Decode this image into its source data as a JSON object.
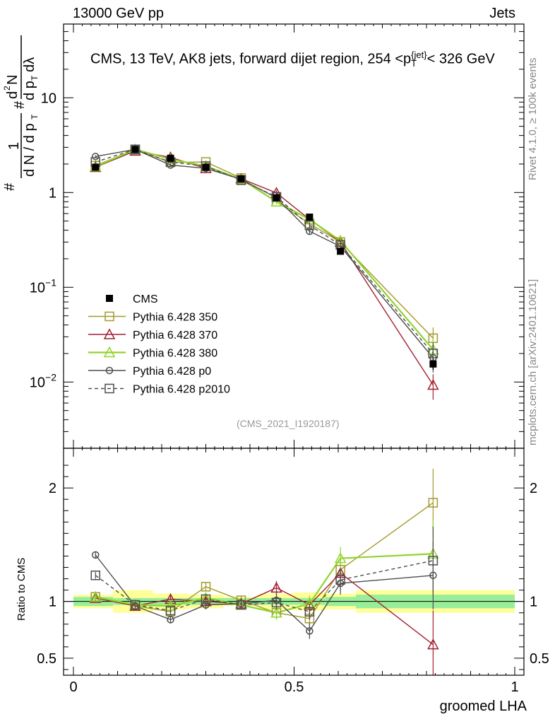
{
  "header": {
    "left": "13000 GeV pp",
    "right": "Jets"
  },
  "side_labels": {
    "rivet": "Rivet 4.1.0, ≥ 100k events",
    "mcplots": "mcplots.cern.ch [arXiv:2401.10621]"
  },
  "chart_data": {
    "type": "line",
    "title": "CMS, 13 TeV, AK8 jets, forward dijet region, 254 <p_T^{jet}< 326 GeV",
    "title_parts": {
      "prefix": "CMS, 13 TeV, AK8 jets, forward dijet region, 254 <p",
      "sup": "{jet}",
      "sub": "T",
      "suffix": "< 326 GeV"
    },
    "analysis_id": "(CMS_2021_I1920187)",
    "xlabel": "groomed LHA",
    "ylabel_main": "1/(dN/dp_T) d²N/(dp_T dλ)",
    "ylabel_ratio": "Ratio to CMS",
    "xlim": [
      0,
      1
    ],
    "ylim_main": [
      0.002,
      60
    ],
    "yscale_main": "log",
    "ylim_ratio": [
      0.35,
      2.35
    ],
    "x_ticks": [
      "0",
      "0.5",
      "1"
    ],
    "y_ticks_main": [
      {
        "value": 0.01,
        "base": "10",
        "exp": "−2"
      },
      {
        "value": 0.1,
        "base": "10",
        "exp": "−1"
      },
      {
        "value": 1,
        "base": "1",
        "exp": ""
      },
      {
        "value": 10,
        "base": "10",
        "exp": ""
      }
    ],
    "y_ticks_ratio": [
      "0.5",
      "1",
      "2"
    ],
    "bin_edges": [
      0.0,
      0.09,
      0.18,
      0.26,
      0.34,
      0.42,
      0.5,
      0.57,
      0.64,
      1.0
    ],
    "x": [
      0.05,
      0.14,
      0.22,
      0.3,
      0.38,
      0.46,
      0.535,
      0.605,
      0.815
    ],
    "data": {
      "name": "CMS",
      "values": [
        1.85,
        2.85,
        2.3,
        1.85,
        1.4,
        0.88,
        0.55,
        0.24,
        0.0155
      ],
      "errors": [
        0.08,
        0.1,
        0.08,
        0.07,
        0.05,
        0.04,
        0.03,
        0.015,
        0.002
      ],
      "band_inner": [
        0.04,
        0.03,
        0.03,
        0.03,
        0.03,
        0.03,
        0.03,
        0.04,
        0.06
      ],
      "band_outer": [
        0.06,
        0.1,
        0.07,
        0.06,
        0.04,
        0.07,
        0.08,
        0.07,
        0.1
      ]
    },
    "series": [
      {
        "name": "Pythia 6.428 350",
        "color": "#a39a2b",
        "marker": "square-open",
        "dashed": false,
        "values": [
          1.92,
          2.85,
          2.08,
          2.1,
          1.42,
          0.8,
          0.47,
          0.3,
          0.029
        ],
        "ratio": [
          1.04,
          0.96,
          0.91,
          1.13,
          1.01,
          0.9,
          0.85,
          1.28,
          1.87
        ],
        "ratio_err": [
          0.03,
          0.03,
          0.03,
          0.04,
          0.04,
          0.06,
          0.07,
          0.1,
          0.3
        ]
      },
      {
        "name": "Pythia 6.428 370",
        "color": "#a21f32",
        "marker": "triangle-open",
        "dashed": false,
        "values": [
          1.85,
          2.75,
          2.35,
          1.8,
          1.4,
          0.99,
          0.52,
          0.3,
          0.0093
        ],
        "ratio": [
          1.03,
          0.96,
          1.02,
          1.0,
          0.98,
          1.12,
          0.97,
          1.25,
          0.62
        ],
        "ratio_err": [
          0.03,
          0.03,
          0.03,
          0.04,
          0.04,
          0.06,
          0.07,
          0.1,
          0.3
        ]
      },
      {
        "name": "Pythia 6.428 380",
        "color": "#8fd42e",
        "marker": "triangle-open",
        "dashed": false,
        "values": [
          1.88,
          2.85,
          2.25,
          1.9,
          1.38,
          0.8,
          0.52,
          0.31,
          0.022
        ],
        "ratio": [
          1.04,
          0.97,
          0.96,
          1.03,
          0.97,
          0.9,
          0.98,
          1.38,
          1.42
        ],
        "ratio_err": [
          0.03,
          0.03,
          0.03,
          0.04,
          0.04,
          0.06,
          0.07,
          0.1,
          0.3
        ]
      },
      {
        "name": "Pythia 6.428 p0",
        "color": "#4d4d4d",
        "marker": "circle-open",
        "dashed": false,
        "values": [
          2.4,
          2.85,
          1.95,
          1.8,
          1.38,
          0.88,
          0.39,
          0.27,
          0.018
        ],
        "ratio": [
          1.41,
          0.96,
          0.84,
          0.97,
          0.98,
          1.01,
          0.74,
          1.16,
          1.23
        ],
        "ratio_err": [
          0.03,
          0.03,
          0.03,
          0.04,
          0.04,
          0.06,
          0.07,
          0.1,
          0.3
        ]
      },
      {
        "name": "Pythia 6.428 p2010",
        "color": "#4d4d4d",
        "marker": "square-open",
        "dashed": true,
        "values": [
          2.1,
          2.85,
          2.1,
          1.9,
          1.35,
          0.9,
          0.45,
          0.28,
          0.02
        ],
        "ratio": [
          1.23,
          0.97,
          0.92,
          1.02,
          0.97,
          0.99,
          0.91,
          1.19,
          1.36
        ],
        "ratio_err": [
          0.03,
          0.03,
          0.03,
          0.04,
          0.04,
          0.06,
          0.07,
          0.1,
          0.3
        ]
      }
    ]
  }
}
